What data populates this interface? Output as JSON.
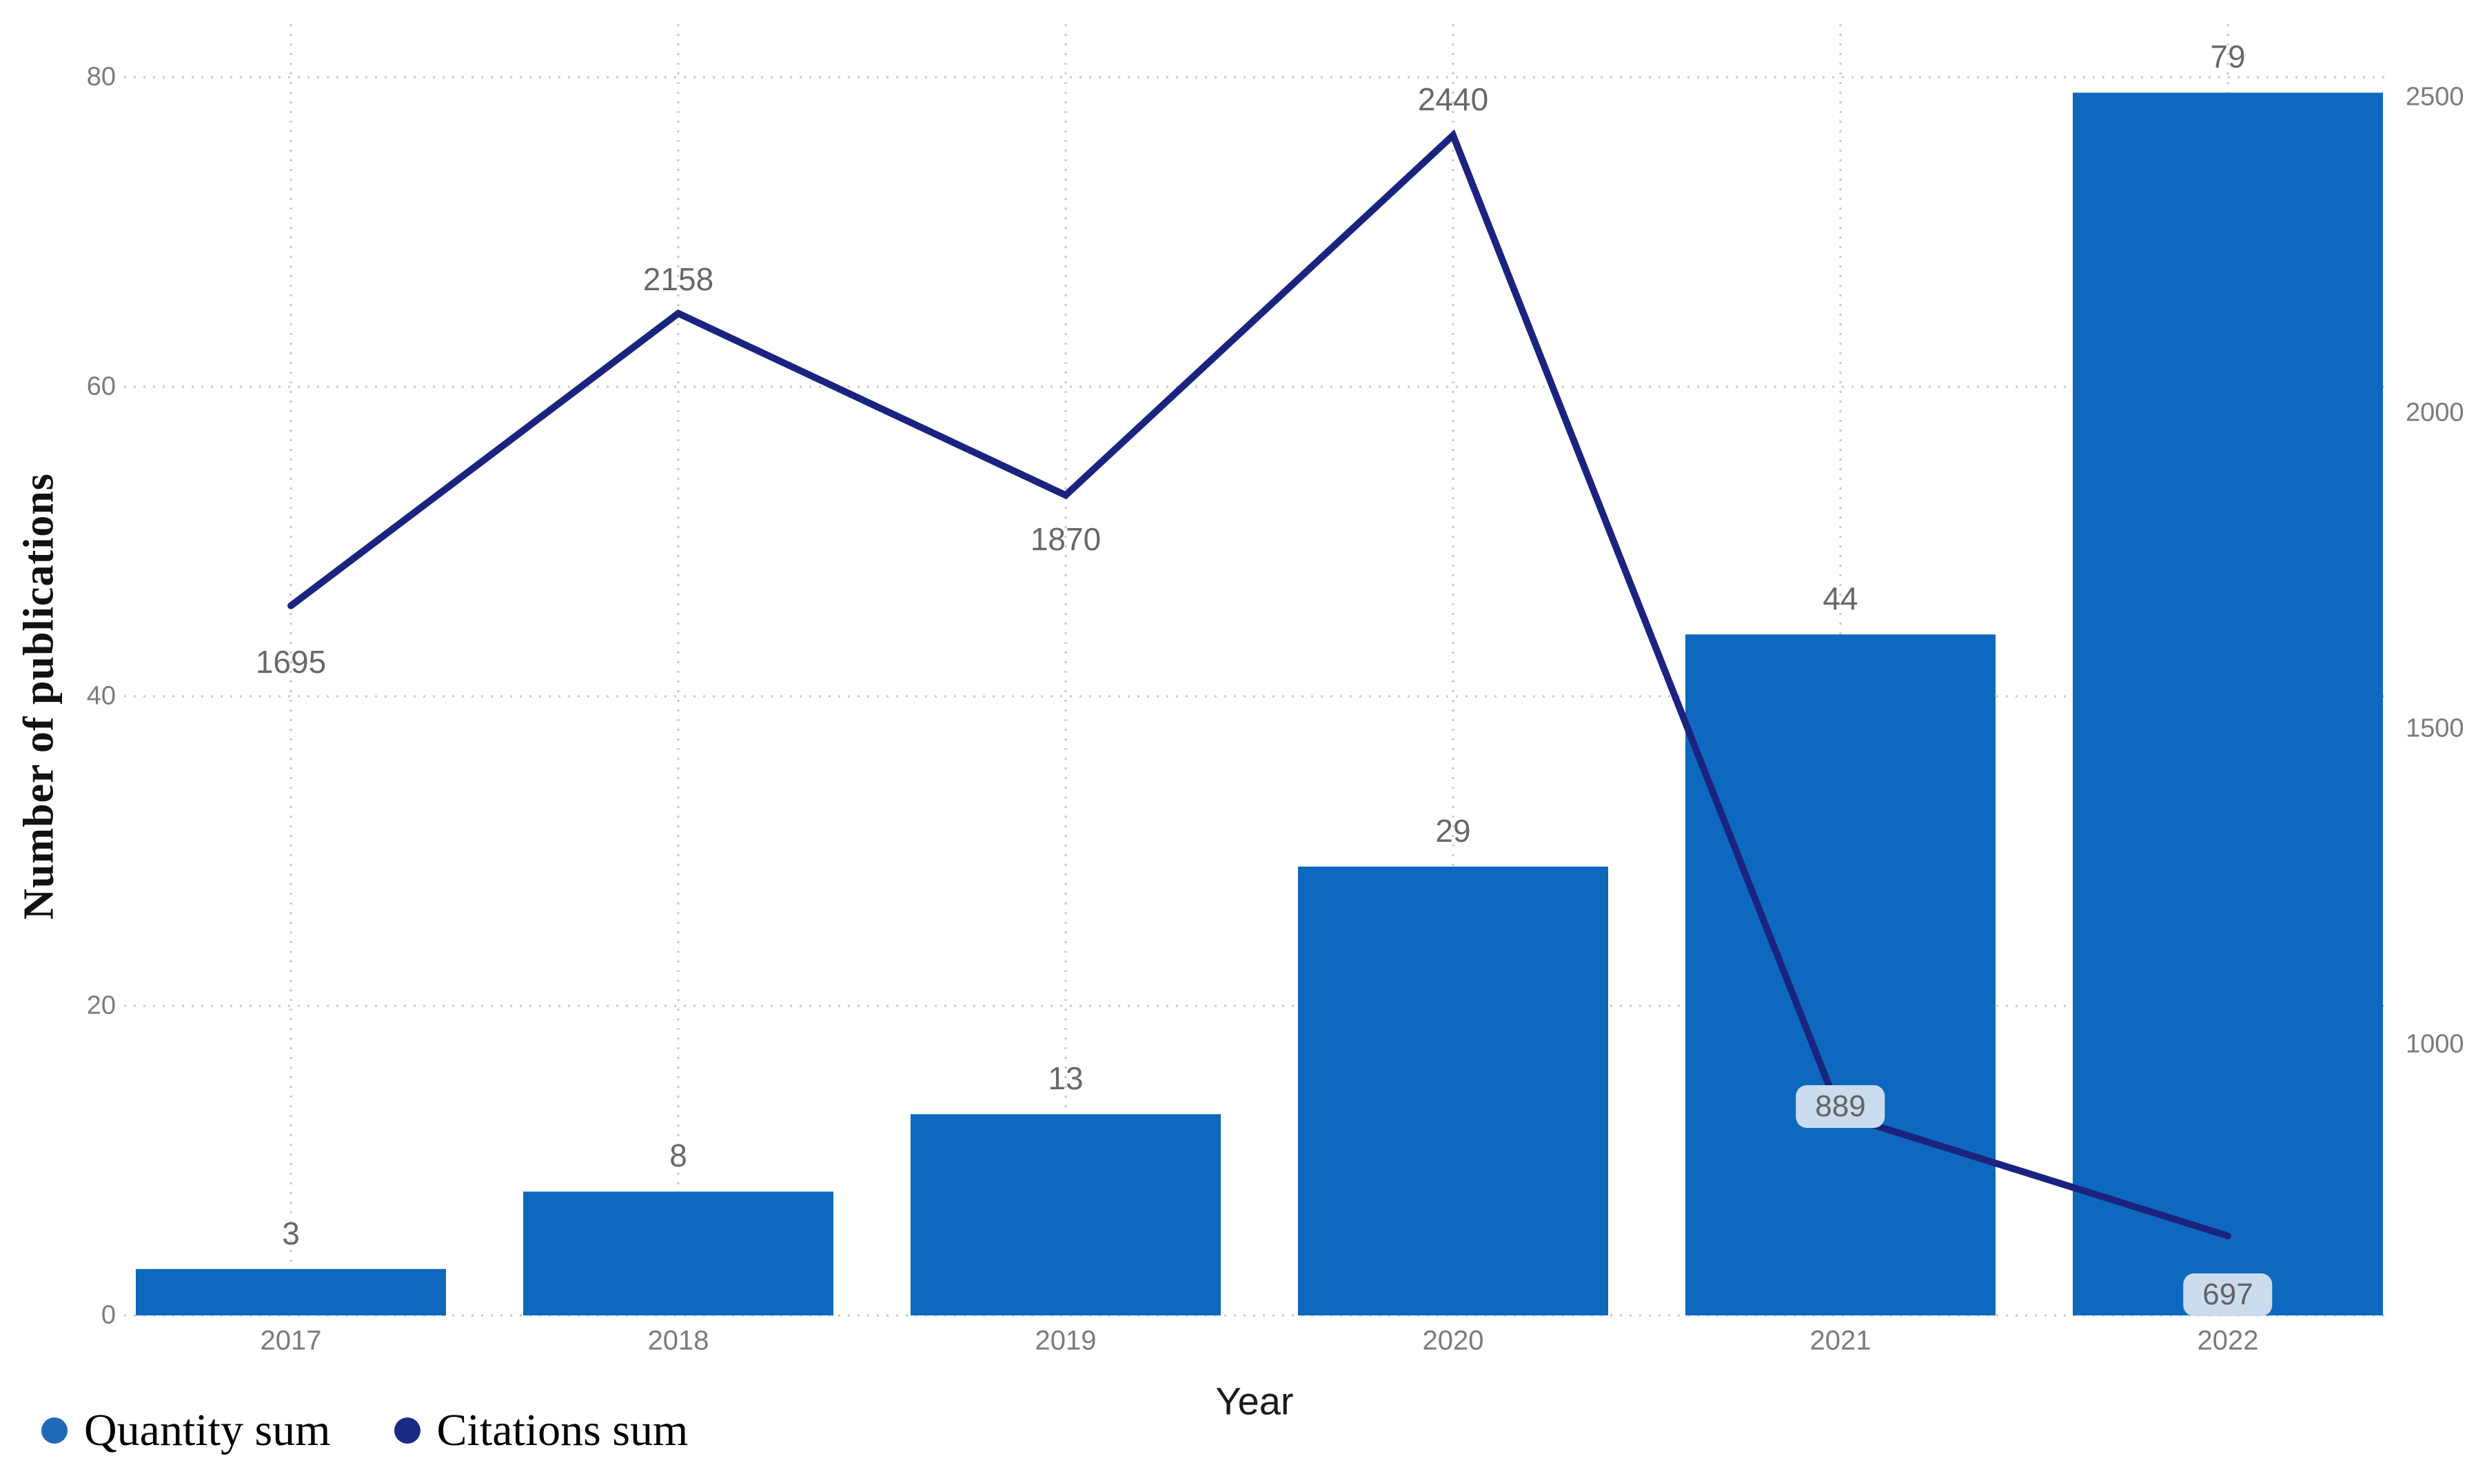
{
  "chart_data": {
    "type": "bar",
    "subtype": "combo-bar-line-dual-axis",
    "title": "",
    "categories": [
      "2017",
      "2018",
      "2019",
      "2020",
      "2021",
      "2022"
    ],
    "series": [
      {
        "name": "Quantity sum",
        "type": "bar",
        "axis": "left",
        "values": [
          3,
          8,
          13,
          29,
          44,
          79
        ]
      },
      {
        "name": "Citations sum",
        "type": "line",
        "axis": "right",
        "values": [
          1695,
          2158,
          1870,
          2440,
          889,
          697
        ],
        "label_offsets": [
          [
            0,
            81
          ],
          [
            0,
            -50
          ],
          [
            0,
            64
          ],
          [
            0,
            -52
          ],
          [
            0,
            -12
          ],
          [
            0,
            85
          ]
        ],
        "label_badge": [
          false,
          false,
          false,
          false,
          true,
          true
        ]
      }
    ],
    "xlabel": "Year",
    "ylabel": "Number of publications",
    "left_ticks": [
      0,
      20,
      40,
      60,
      80
    ],
    "right_ticks": [
      1000,
      1500,
      2000,
      2500
    ],
    "ylim_left": [
      0,
      80
    ],
    "ylim_right": [
      571,
      2532
    ],
    "grid": "dotted",
    "legend_position": "bottom-left"
  },
  "legend": {
    "items": [
      {
        "label": "Quantity sum",
        "color": "#2268b8"
      },
      {
        "label": "Citations sum",
        "color": "#1b2a85"
      }
    ]
  },
  "colors": {
    "bar_fill": "#0e69be",
    "line_stroke": "#1b2380",
    "gridline": "#c8c8c8",
    "tick_text": "#7b7b7b",
    "value_text": "#686868",
    "badge_bg": "#cbdcee",
    "background": "#ffffff"
  }
}
